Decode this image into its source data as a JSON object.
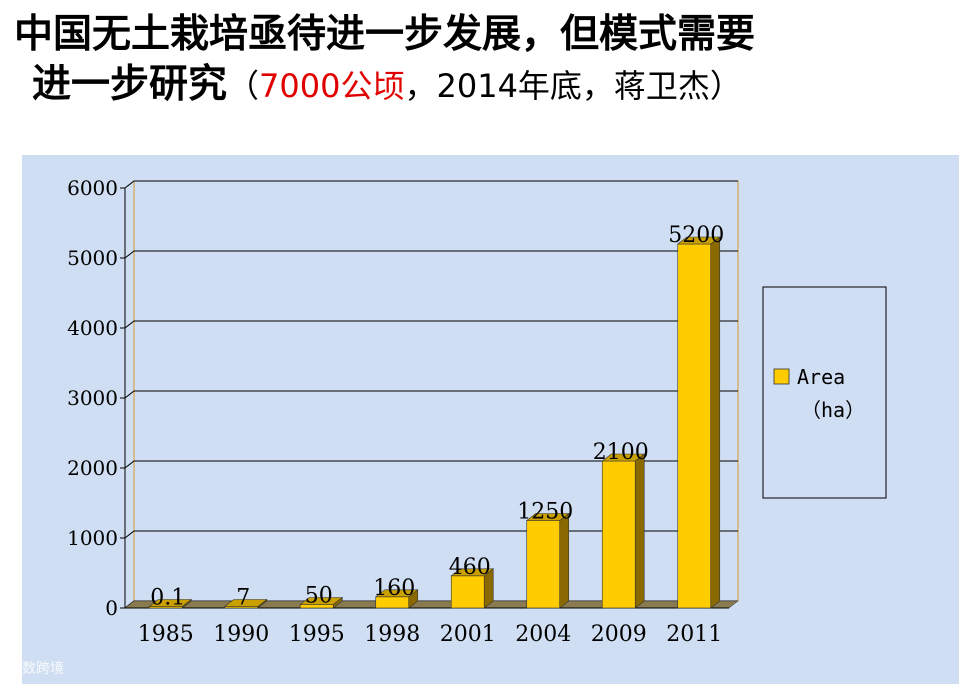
{
  "title": {
    "line1": "中国无土栽培亟待进一步发展，但模式需要",
    "line2_main": "进一步研究",
    "paren_open": "（",
    "paren_highlight": "7000公顷",
    "paren_rest": "，2014年底，蒋卫杰）"
  },
  "watermark": "大数跨境",
  "colors": {
    "panel_background": "#cfdef2",
    "bar_front": "#ffcc00",
    "bar_side": "#8a6a00",
    "bar_top": "#c9a000",
    "floor": "#8a7a50",
    "title_highlight": "#e00000"
  },
  "chart_data": {
    "type": "bar",
    "title": "",
    "xlabel": "",
    "ylabel": "",
    "categories": [
      "1985",
      "1990",
      "1995",
      "1998",
      "2001",
      "2004",
      "2009",
      "2011"
    ],
    "series": [
      {
        "name": "Area（ha）",
        "values": [
          0.1,
          7,
          50,
          160,
          460,
          1250,
          2100,
          5200
        ],
        "labels": [
          "0.1",
          "7",
          "50",
          "160",
          "460",
          "1250",
          "2100",
          "5200"
        ]
      }
    ],
    "yticks": [
      "0",
      "1000",
      "2000",
      "3000",
      "4000",
      "5000",
      "6000"
    ],
    "ylim": [
      0,
      6000
    ],
    "grid": true,
    "legend": {
      "position": "right",
      "label_line1": "Area",
      "label_line2": "（ha）"
    },
    "style": "3d"
  }
}
